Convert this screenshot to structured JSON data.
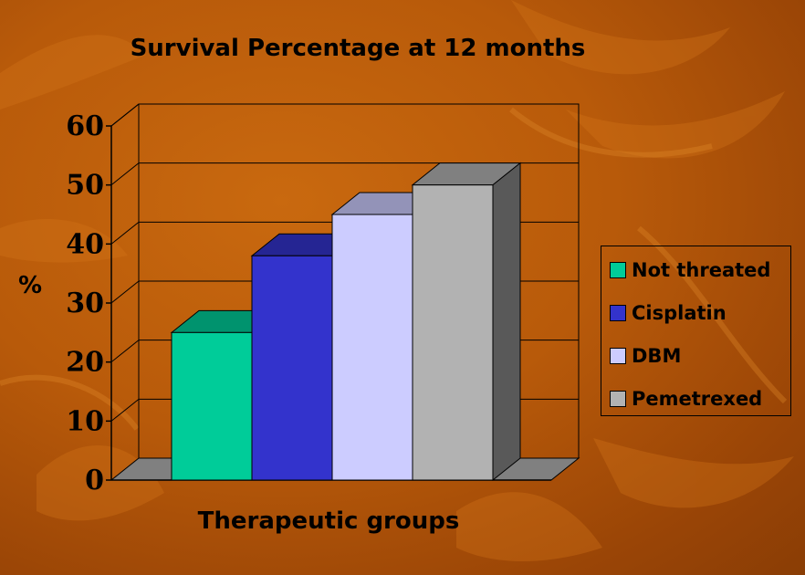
{
  "chart_data": {
    "type": "bar",
    "title": "Survival Percentage at 12 months",
    "xlabel": "Therapeutic groups",
    "ylabel": "%",
    "ylim": [
      0,
      60
    ],
    "yticks": [
      0,
      10,
      20,
      30,
      40,
      50,
      60
    ],
    "grid": true,
    "legend_position": "right",
    "three_d": true,
    "categories": [
      "Not threated",
      "Cisplatin",
      "DBM",
      "Pemetrexed"
    ],
    "values": [
      25,
      38,
      45,
      50
    ],
    "colors": [
      "#00cc99",
      "#3333cc",
      "#ccccff",
      "#b2b2b2"
    ]
  }
}
